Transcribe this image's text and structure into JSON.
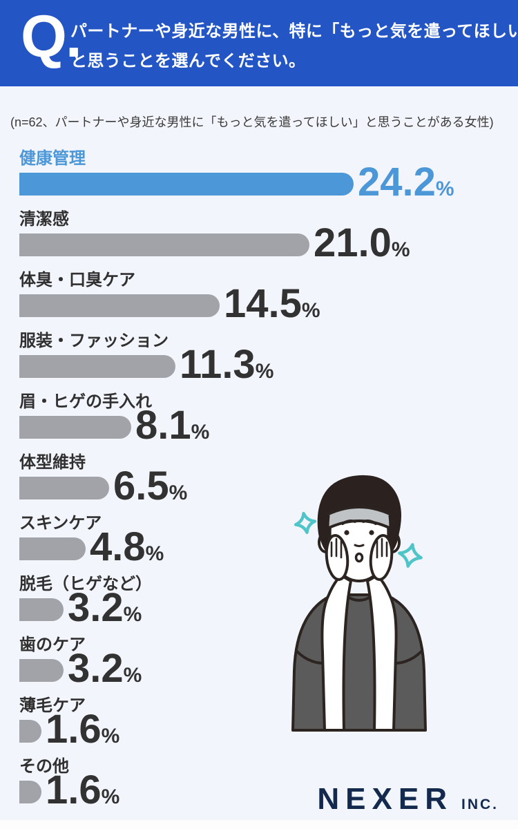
{
  "header": {
    "q_mark": "Q.",
    "question_line1": "パートナーや身近な男性に、特に「もっと気を遣ってほしい」",
    "question_line2": "と思うことを選んでください。",
    "bg_color": "#2356C4"
  },
  "subtitle": "(n=62、パートナーや身近な男性に「もっと気を遣ってほしい」と思うことがある女性)",
  "chart_data": {
    "type": "bar",
    "orientation": "horizontal",
    "unit": "%",
    "n": 62,
    "categories": [
      "健康管理",
      "清潔感",
      "体臭・口臭ケア",
      "服装・ファッション",
      "眉・ヒゲの手入れ",
      "体型維持",
      "スキンケア",
      "脱毛（ヒゲなど）",
      "歯のケア",
      "薄毛ケア",
      "その他"
    ],
    "values": [
      24.2,
      21.0,
      14.5,
      11.3,
      8.1,
      6.5,
      4.8,
      3.2,
      3.2,
      1.6,
      1.6
    ],
    "value_labels": [
      "24.2",
      "21.0",
      "14.5",
      "11.3",
      "8.1",
      "6.5",
      "4.8",
      "3.2",
      "3.2",
      "1.6",
      "1.6"
    ],
    "highlight_index": 0,
    "xlim": [
      0,
      25
    ],
    "colors": {
      "highlight_bar": "#4C97D8",
      "default_bar": "#A1A3A8",
      "highlight_text": "#4C97D8",
      "default_text": "#323232"
    }
  },
  "illustration": {
    "name": "man-with-headband-touching-face",
    "sparkle_color": "#4FC5C9"
  },
  "footer": {
    "brand": "NEXER",
    "brand_suffix": "INC."
  }
}
